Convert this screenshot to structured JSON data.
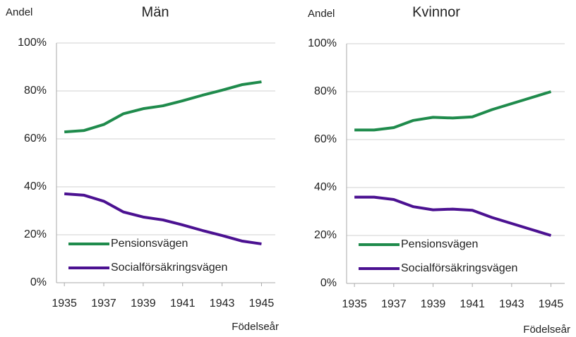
{
  "chart_data": [
    {
      "type": "line",
      "title": "Män",
      "ylabel": "Andel",
      "xlabel": "Födelseår",
      "x": [
        1935,
        1936,
        1937,
        1938,
        1939,
        1940,
        1941,
        1942,
        1943,
        1944,
        1945
      ],
      "series": [
        {
          "name": "Pensionsvägen",
          "color": "#1f8b4c",
          "values": [
            62.9,
            63.5,
            66,
            70.5,
            72.6,
            73.8,
            75.9,
            78.2,
            80.3,
            82.6,
            83.8
          ]
        },
        {
          "name": "Socialförsäkringsvägen",
          "color": "#4b1191",
          "values": [
            37.1,
            36.5,
            34,
            29.5,
            27.4,
            26.2,
            24.1,
            21.8,
            19.7,
            17.4,
            16.2
          ]
        }
      ],
      "xlim": [
        1934.6,
        1945.7
      ],
      "xticks": [
        1935,
        1937,
        1939,
        1941,
        1943,
        1945
      ],
      "ylim": [
        0,
        100
      ],
      "yticks": [
        {
          "value": 0,
          "label": "0%"
        },
        {
          "value": 20,
          "label": "20%"
        },
        {
          "value": 40,
          "label": "40%"
        },
        {
          "value": 60,
          "label": "60%"
        },
        {
          "value": 80,
          "label": "80%"
        },
        {
          "value": 100,
          "label": "100%"
        }
      ],
      "grid": true,
      "legend": "lower left"
    },
    {
      "type": "line",
      "title": "Kvinnor",
      "ylabel": "Andel",
      "xlabel": "Födelseår",
      "x": [
        1935,
        1936,
        1937,
        1938,
        1939,
        1940,
        1941,
        1942,
        1943,
        1944,
        1945
      ],
      "series": [
        {
          "name": "Pensionsvägen",
          "color": "#1f8b4c",
          "values": [
            64,
            64,
            65,
            68,
            69.3,
            69,
            69.5,
            72.5,
            75,
            77.5,
            80
          ]
        },
        {
          "name": "Socialförsäkringsvägen",
          "color": "#4b1191",
          "values": [
            36,
            36,
            35,
            32,
            30.7,
            31,
            30.5,
            27.5,
            25,
            22.5,
            20
          ]
        }
      ],
      "xlim": [
        1934.6,
        1945.7
      ],
      "xticks": [
        1935,
        1937,
        1939,
        1941,
        1943,
        1945
      ],
      "ylim": [
        0,
        100
      ],
      "yticks": [
        {
          "value": 0,
          "label": "0%"
        },
        {
          "value": 20,
          "label": "20%"
        },
        {
          "value": 40,
          "label": "40%"
        },
        {
          "value": 60,
          "label": "60%"
        },
        {
          "value": 80,
          "label": "80%"
        },
        {
          "value": 100,
          "label": "100%"
        }
      ],
      "grid": true,
      "legend": "lower left"
    }
  ]
}
